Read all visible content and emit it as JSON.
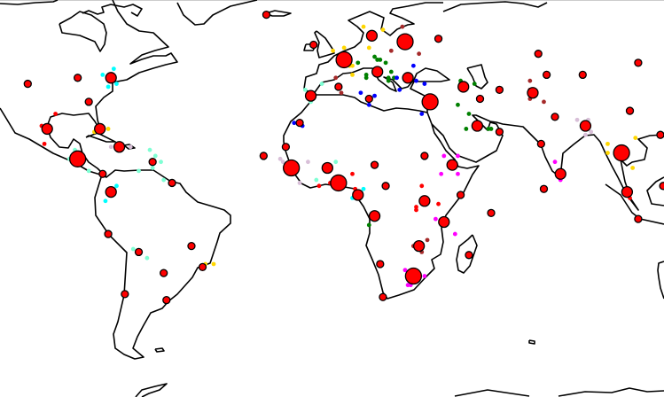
{
  "chart_data": {
    "type": "scatter",
    "map": {
      "projection": "cylindrical",
      "lon_range": [
        -120,
        119
      ],
      "lat_range": [
        -67,
        65
      ],
      "land_fill": "#ffffff",
      "coastline_color": "#000000"
    },
    "marker_style": {
      "fill": "#ff0000",
      "stroke": "#000000"
    },
    "size_levels": [
      "small",
      "medium",
      "large"
    ],
    "cities": [
      [
        -110,
        37,
        "small"
      ],
      [
        -92,
        39,
        "small"
      ],
      [
        -80,
        39,
        "medium"
      ],
      [
        -88,
        31,
        "small"
      ],
      [
        -103,
        22,
        "medium"
      ],
      [
        -84,
        22,
        "medium"
      ],
      [
        -77,
        16,
        "medium"
      ],
      [
        -92,
        12,
        "large"
      ],
      [
        -83,
        7,
        "small"
      ],
      [
        -58,
        4,
        "small"
      ],
      [
        -65,
        11,
        "small"
      ],
      [
        -25,
        13,
        "small"
      ],
      [
        -80,
        1,
        "medium"
      ],
      [
        -81,
        -13,
        "small"
      ],
      [
        -70,
        -19,
        "small"
      ],
      [
        -51,
        -17,
        "small"
      ],
      [
        -61,
        -26,
        "small"
      ],
      [
        -47,
        -24,
        "small"
      ],
      [
        -75,
        -33,
        "small"
      ],
      [
        -60,
        -35,
        "small"
      ],
      [
        -24,
        60,
        "small"
      ],
      [
        -7,
        50,
        "small"
      ],
      [
        14,
        53,
        "medium"
      ],
      [
        26,
        51,
        "large"
      ],
      [
        38,
        52,
        "small"
      ],
      [
        4,
        45,
        "large"
      ],
      [
        16,
        41,
        "medium"
      ],
      [
        27,
        39,
        "medium"
      ],
      [
        2,
        36,
        "small"
      ],
      [
        -8,
        33,
        "medium"
      ],
      [
        13,
        32,
        "small"
      ],
      [
        35,
        31,
        "large"
      ],
      [
        47,
        36,
        "medium"
      ],
      [
        53,
        32,
        "small"
      ],
      [
        -12,
        24,
        "small"
      ],
      [
        52,
        23,
        "medium"
      ],
      [
        -17,
        16,
        "small"
      ],
      [
        -15,
        9,
        "large"
      ],
      [
        -2,
        9,
        "medium"
      ],
      [
        15,
        10,
        "small"
      ],
      [
        33,
        13,
        "small"
      ],
      [
        43,
        10,
        "medium"
      ],
      [
        2,
        4,
        "large"
      ],
      [
        19,
        3,
        "small"
      ],
      [
        9,
        0,
        "medium"
      ],
      [
        33,
        -2,
        "medium"
      ],
      [
        46,
        0,
        "small"
      ],
      [
        15,
        -7,
        "medium"
      ],
      [
        40,
        -9,
        "medium"
      ],
      [
        31,
        -17,
        "medium"
      ],
      [
        49,
        -20,
        "small"
      ],
      [
        17,
        -23,
        "small"
      ],
      [
        29,
        -27,
        "large"
      ],
      [
        18,
        -34,
        "small"
      ],
      [
        74,
        47,
        "small"
      ],
      [
        110,
        44,
        "small"
      ],
      [
        77,
        40,
        "small"
      ],
      [
        90,
        40,
        "small"
      ],
      [
        60,
        35,
        "small"
      ],
      [
        72,
        34,
        "medium"
      ],
      [
        80,
        26,
        "small"
      ],
      [
        107,
        28,
        "small"
      ],
      [
        60,
        21,
        "small"
      ],
      [
        91,
        23,
        "medium"
      ],
      [
        118,
        20,
        "small"
      ],
      [
        75,
        17,
        "small"
      ],
      [
        104,
        14,
        "large"
      ],
      [
        82,
        7,
        "medium"
      ],
      [
        76,
        2,
        "small"
      ],
      [
        106,
        1,
        "medium"
      ],
      [
        119,
        3,
        "small"
      ],
      [
        57,
        -6,
        "small"
      ],
      [
        110,
        -8,
        "small"
      ]
    ],
    "dot_groups": [
      {
        "color": "#00ffff",
        "points": [
          [
            -83,
            40
          ],
          [
            -79,
            42
          ],
          [
            -78,
            37
          ],
          [
            -81,
            36
          ],
          [
            -78,
            3
          ],
          [
            -82,
            -2
          ],
          [
            11,
            2
          ],
          [
            7,
            -1
          ]
        ]
      },
      {
        "color": "#ff0000",
        "points": [
          [
            -100,
            27
          ],
          [
            -105,
            23
          ],
          [
            -104,
            17
          ],
          [
            7,
            7
          ],
          [
            -5,
            3
          ],
          [
            -1,
            4
          ],
          [
            8,
            2
          ],
          [
            32,
            3
          ],
          [
            38,
            -3
          ],
          [
            30,
            -4
          ],
          [
            30,
            -5
          ],
          [
            107,
            -1
          ]
        ]
      },
      {
        "color": "#ffd700",
        "points": [
          [
            -81,
            22
          ],
          [
            -86,
            21
          ],
          [
            11,
            56
          ],
          [
            18,
            55
          ],
          [
            13,
            49
          ],
          [
            0,
            48
          ],
          [
            4,
            49
          ],
          [
            6,
            43
          ],
          [
            7,
            43
          ],
          [
            7,
            40
          ],
          [
            99,
            17
          ],
          [
            99,
            14
          ],
          [
            109,
            19
          ],
          [
            104,
            12
          ],
          [
            108,
            9
          ],
          [
            -46,
            -23
          ],
          [
            -43,
            -23
          ]
        ]
      },
      {
        "color": "#d8bfd8",
        "points": [
          [
            -80,
            16
          ],
          [
            -73,
            16
          ],
          [
            -19,
            12
          ],
          [
            -18,
            11
          ],
          [
            -9,
            11
          ],
          [
            -12,
            4
          ],
          [
            88,
            25
          ],
          [
            92,
            25
          ],
          [
            93,
            21
          ],
          [
            91,
            20
          ]
        ]
      },
      {
        "color": "#7fffd4",
        "points": [
          [
            -93,
            15
          ],
          [
            -95,
            12
          ],
          [
            -88,
            8
          ],
          [
            -66,
            15
          ],
          [
            -64,
            13
          ],
          [
            -62,
            11
          ],
          [
            -65,
            9
          ],
          [
            -70,
            8
          ],
          [
            -61,
            5
          ],
          [
            -10,
            35
          ],
          [
            -4,
            37
          ],
          [
            -8,
            31
          ],
          [
            1,
            11
          ],
          [
            -6,
            5
          ],
          [
            -72,
            -18
          ],
          [
            -67,
            -21
          ]
        ]
      },
      {
        "color": "#a52a2a",
        "points": [
          [
            25,
            56
          ],
          [
            28,
            50
          ],
          [
            21,
            48
          ],
          [
            31,
            47
          ],
          [
            1,
            39
          ],
          [
            3,
            34
          ],
          [
            29,
            -17
          ],
          [
            34,
            -15
          ],
          [
            32,
            -19
          ],
          [
            71,
            38
          ],
          [
            71,
            35
          ],
          [
            71,
            32
          ],
          [
            76,
            31
          ]
        ]
      },
      {
        "color": "#008000",
        "points": [
          [
            15,
            46
          ],
          [
            9,
            44
          ],
          [
            16,
            45
          ],
          [
            17,
            45
          ],
          [
            19,
            44
          ],
          [
            21,
            41
          ],
          [
            12,
            40
          ],
          [
            12,
            39
          ],
          [
            20,
            39
          ],
          [
            22,
            39
          ],
          [
            20,
            38
          ],
          [
            46,
            38
          ],
          [
            46,
            37
          ],
          [
            51,
            37
          ],
          [
            45,
            30
          ],
          [
            49,
            27
          ],
          [
            48,
            22
          ],
          [
            56,
            22
          ],
          [
            57,
            22
          ],
          [
            15,
            -6
          ],
          [
            13,
            -10
          ]
        ]
      },
      {
        "color": "#0000ff",
        "points": [
          [
            29,
            43
          ],
          [
            23,
            39
          ],
          [
            30,
            38
          ],
          [
            33,
            37
          ],
          [
            24,
            35
          ],
          [
            10,
            34
          ],
          [
            15,
            33
          ],
          [
            13,
            30
          ],
          [
            32,
            27
          ],
          [
            -14,
            24
          ],
          [
            -11,
            23
          ]
        ]
      },
      {
        "color": "#ff00ff",
        "points": [
          [
            40,
            13
          ],
          [
            45,
            13
          ],
          [
            39,
            7
          ],
          [
            45,
            7
          ],
          [
            37,
            -8
          ],
          [
            44,
            -13
          ],
          [
            26,
            -25
          ],
          [
            33,
            -27
          ],
          [
            27,
            -30
          ],
          [
            28,
            -30
          ],
          [
            80,
            11
          ],
          [
            82,
            5
          ]
        ]
      }
    ]
  }
}
